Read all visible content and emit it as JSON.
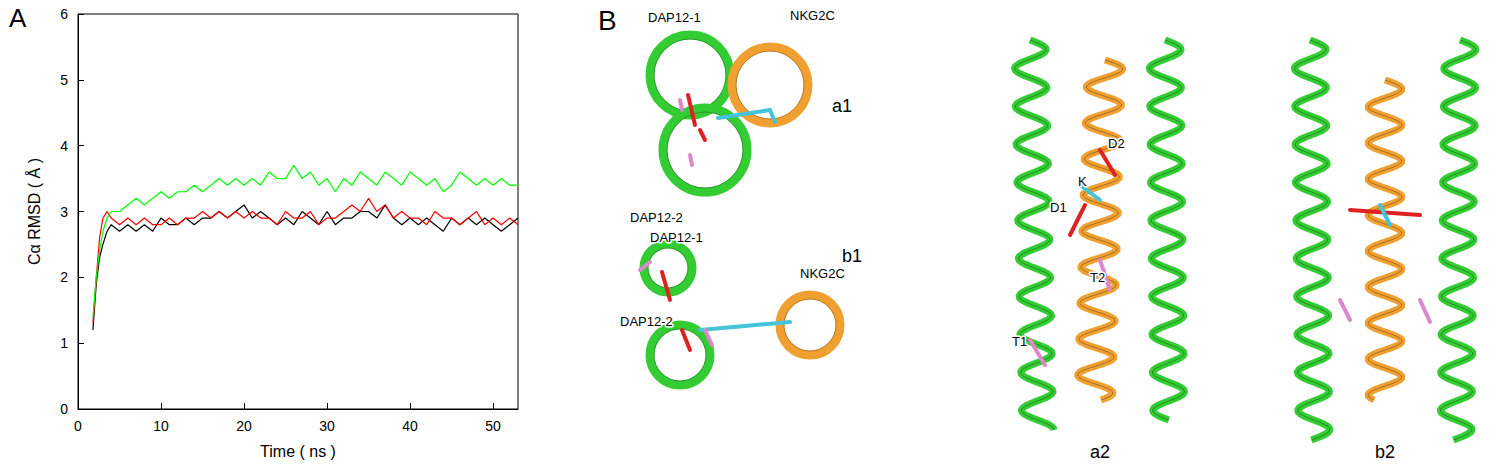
{
  "chart_data": {
    "type": "line",
    "title": "A",
    "x_label": "Time ( ns )",
    "y_label": "Cα RMSD ( Å )",
    "xlim": [
      0,
      53
    ],
    "xticks": [
      0,
      10,
      20,
      30,
      40,
      50
    ],
    "ylim": [
      0,
      6
    ],
    "yticks": [
      0,
      1,
      2,
      3,
      4,
      5,
      6
    ],
    "grid": false,
    "x": [
      1.8,
      2.2,
      2.6,
      3,
      3.5,
      4,
      5,
      6,
      7,
      8,
      9,
      10,
      11,
      12,
      13,
      14,
      15,
      16,
      17,
      18,
      19,
      20,
      21,
      22,
      23,
      24,
      25,
      26,
      27,
      28,
      29,
      30,
      31,
      32,
      33,
      34,
      35,
      36,
      37,
      38,
      39,
      40,
      41,
      42,
      43,
      44,
      45,
      46,
      47,
      48,
      49,
      50,
      51,
      52,
      53
    ],
    "series": [
      {
        "color": "#000000",
        "values": [
          1.2,
          1.9,
          2.3,
          2.5,
          2.7,
          2.8,
          2.7,
          2.8,
          2.7,
          2.8,
          2.7,
          2.9,
          2.8,
          2.8,
          2.9,
          2.8,
          2.9,
          2.9,
          3.0,
          2.9,
          3.0,
          3.1,
          2.9,
          3.0,
          2.9,
          2.8,
          2.9,
          2.8,
          3.0,
          2.9,
          2.8,
          3.0,
          2.8,
          2.9,
          2.9,
          3.0,
          3.0,
          2.9,
          3.1,
          2.9,
          2.8,
          2.9,
          2.8,
          2.9,
          2.8,
          2.7,
          2.9,
          2.8,
          2.9,
          2.8,
          2.9,
          2.8,
          2.7,
          2.8,
          2.9
        ]
      },
      {
        "color": "#ff0000",
        "values": [
          1.3,
          2.0,
          2.6,
          2.9,
          3.0,
          2.9,
          2.8,
          2.9,
          2.8,
          2.9,
          2.8,
          2.8,
          2.9,
          2.8,
          2.9,
          2.9,
          3.0,
          2.9,
          3.0,
          2.9,
          3.0,
          2.9,
          3.0,
          2.9,
          2.9,
          2.8,
          3.0,
          2.9,
          2.9,
          3.0,
          2.8,
          2.9,
          2.9,
          3.0,
          3.1,
          3.0,
          3.2,
          3.0,
          3.1,
          2.9,
          3.0,
          2.9,
          2.9,
          2.8,
          3.0,
          2.9,
          2.9,
          2.8,
          2.9,
          3.0,
          2.8,
          2.9,
          2.8,
          2.9,
          2.8
        ]
      },
      {
        "color": "#00ff00",
        "values": [
          1.4,
          2.0,
          2.4,
          2.7,
          2.9,
          3.0,
          3.0,
          3.1,
          3.2,
          3.1,
          3.2,
          3.3,
          3.2,
          3.3,
          3.3,
          3.4,
          3.3,
          3.4,
          3.5,
          3.4,
          3.5,
          3.4,
          3.5,
          3.4,
          3.6,
          3.5,
          3.5,
          3.7,
          3.5,
          3.6,
          3.4,
          3.5,
          3.3,
          3.5,
          3.4,
          3.6,
          3.5,
          3.4,
          3.6,
          3.5,
          3.4,
          3.6,
          3.5,
          3.4,
          3.5,
          3.3,
          3.4,
          3.6,
          3.5,
          3.4,
          3.5,
          3.4,
          3.5,
          3.4,
          3.4
        ]
      }
    ]
  },
  "diagram": {
    "panel_label": "B",
    "views": [
      {
        "name": "a1",
        "labels": [
          "DAP12-1",
          "NKG2C",
          "DAP12-2"
        ]
      },
      {
        "name": "b1",
        "labels": [
          "DAP12-1",
          "NKG2C",
          "DAP12-2"
        ]
      },
      {
        "name": "a2",
        "labels": [
          "D2",
          "K",
          "D1",
          "T2",
          "T1"
        ]
      },
      {
        "name": "b2",
        "labels": []
      }
    ]
  }
}
